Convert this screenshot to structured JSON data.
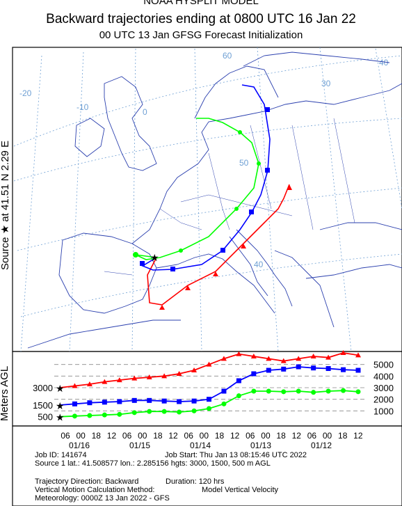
{
  "header": {
    "line1": "NOAA HYSPLIT MODEL",
    "line2": "Backward trajectories ending at 0800 UTC 16 Jan 22",
    "line3": "00 UTC 13 Jan    GFSG  Forecast Initialization"
  },
  "side_labels": {
    "source": "Source ★  at   41.51 N   2.29 E",
    "agl": "Meters AGL"
  },
  "map": {
    "lon_labels": [
      "-20",
      "-10",
      "0",
      "30",
      "40"
    ],
    "lat_labels": [
      "60",
      "50",
      "40"
    ],
    "colors": {
      "land_border": "#2a3fae",
      "graticule": "#6fa0d4",
      "red": "#ff0000",
      "blue": "#0000ff",
      "green": "#00ff00"
    }
  },
  "footer": {
    "job_id": "Job ID: 141674",
    "job_start": "Job Start: Thu Jan 13 08:15:46 UTC 2022",
    "source": "Source 1 lat.: 41.508577  lon.: 2.285156  hgts: 3000, 1500, 500 m AGL",
    "direction": "Trajectory Direction: Backward",
    "duration": "Duration: 120 hrs",
    "vertical": "Vertical Motion Calculation Method:",
    "vertical_value": "Model Vertical Velocity",
    "meteorology": "Meteorology: 0000Z 13 Jan 2022 - GFS"
  },
  "chart_data": {
    "type": "line",
    "title": "Backward trajectories ending at 0800 UTC 16 Jan 22",
    "ylabel": "Meters AGL",
    "x_hours_back": [
      0,
      6,
      12,
      18,
      24,
      30,
      36,
      42,
      48,
      54,
      60,
      66,
      72,
      78,
      84,
      90,
      96,
      102,
      108,
      114,
      120
    ],
    "x_tick_labels": [
      "06",
      "00",
      "18",
      "12",
      "06",
      "00",
      "18",
      "12",
      "06",
      "00",
      "18",
      "12",
      "06",
      "00",
      "18",
      "12",
      "06",
      "00",
      "18",
      "12"
    ],
    "x_date_labels": [
      "01/16",
      "01/15",
      "01/14",
      "01/13",
      "01/12"
    ],
    "y_tick_labels": [
      "5000",
      "4000",
      "3000",
      "2000",
      "1000"
    ],
    "start_height_labels": [
      "3000",
      "1500",
      "500"
    ],
    "ylim": [
      0,
      6000
    ],
    "series": [
      {
        "name": "3000",
        "color": "#ff0000",
        "marker": "triangle",
        "values": [
          3000,
          3150,
          3300,
          3500,
          3650,
          3800,
          3900,
          4000,
          4200,
          4500,
          5000,
          5500,
          5900,
          5700,
          5500,
          5300,
          5500,
          5700,
          5600,
          6000,
          5800
        ]
      },
      {
        "name": "1500",
        "color": "#0000ff",
        "marker": "square",
        "values": [
          1500,
          1600,
          1700,
          1750,
          1800,
          1900,
          1900,
          1850,
          1800,
          1850,
          2000,
          2700,
          3600,
          4200,
          4500,
          4600,
          4800,
          4700,
          4650,
          4550,
          4500
        ]
      },
      {
        "name": "500",
        "color": "#00ff00",
        "marker": "circle",
        "values": [
          500,
          550,
          600,
          650,
          700,
          850,
          950,
          950,
          900,
          1000,
          1200,
          1600,
          2300,
          2700,
          2700,
          2650,
          2700,
          2600,
          2700,
          2750,
          2650
        ]
      }
    ]
  }
}
